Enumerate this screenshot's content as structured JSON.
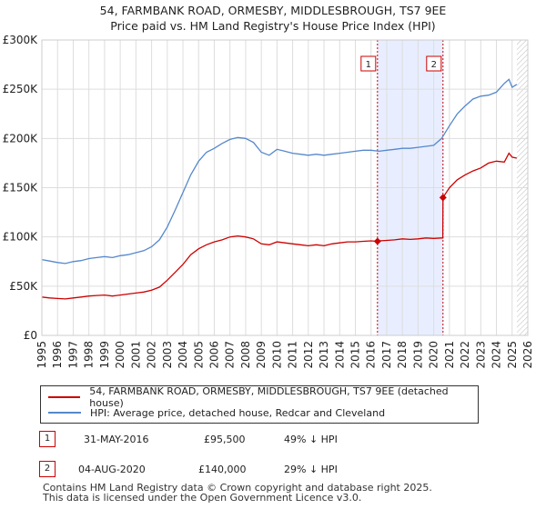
{
  "header": {
    "title": "54, FARMBANK ROAD, ORMESBY, MIDDLESBROUGH, TS7 9EE",
    "subtitle": "Price paid vs. HM Land Registry's House Price Index (HPI)"
  },
  "legend": {
    "property_label": "54, FARMBANK ROAD, ORMESBY, MIDDLESBROUGH, TS7 9EE (detached house)",
    "hpi_label": "HPI: Average price, detached house, Redcar and Cleveland"
  },
  "sales": [
    {
      "num": "1",
      "date": "31-MAY-2016",
      "price": "£95,500",
      "hpi": "49% ↓ HPI"
    },
    {
      "num": "2",
      "date": "04-AUG-2020",
      "price": "£140,000",
      "hpi": "29% ↓ HPI"
    }
  ],
  "footer": {
    "line1": "Contains HM Land Registry data © Crown copyright and database right 2025.",
    "line2": "This data is licensed under the Open Government Licence v3.0."
  },
  "colors": {
    "property": "#cc0000",
    "hpi": "#5588cc",
    "shade": "#e8eeff",
    "grid": "#dddddd"
  },
  "chart_data": {
    "type": "line",
    "xlim": [
      1995,
      2026
    ],
    "ylim": [
      0,
      300000
    ],
    "x_ticks": [
      1995,
      1996,
      1997,
      1998,
      1999,
      2000,
      2001,
      2002,
      2003,
      2004,
      2005,
      2006,
      2007,
      2008,
      2009,
      2010,
      2011,
      2012,
      2013,
      2014,
      2015,
      2016,
      2017,
      2018,
      2019,
      2020,
      2021,
      2022,
      2023,
      2024,
      2025,
      2026
    ],
    "y_ticks": [
      0,
      50000,
      100000,
      150000,
      200000,
      250000,
      300000
    ],
    "y_tick_labels": [
      "£0",
      "£50K",
      "£100K",
      "£150K",
      "£200K",
      "£250K",
      "£300K"
    ],
    "shaded_range": [
      2016.41,
      2020.59
    ],
    "hatched_from": 2025.3,
    "markers": [
      {
        "label": "1",
        "x": 2016.41,
        "y": 95500
      },
      {
        "label": "2",
        "x": 2020.59,
        "y": 140000
      }
    ],
    "series": [
      {
        "name": "54, FARMBANK ROAD, ORMESBY, MIDDLESBROUGH, TS7 9EE (detached house)",
        "x": [
          1995,
          1995.5,
          1996,
          1996.5,
          1997,
          1997.5,
          1998,
          1998.5,
          1999,
          1999.5,
          2000,
          2000.5,
          2001,
          2001.5,
          2002,
          2002.5,
          2003,
          2003.5,
          2004,
          2004.5,
          2005,
          2005.5,
          2006,
          2006.5,
          2007,
          2007.5,
          2008,
          2008.5,
          2009,
          2009.5,
          2010,
          2010.5,
          2011,
          2011.5,
          2012,
          2012.5,
          2013,
          2013.5,
          2014,
          2014.5,
          2015,
          2015.5,
          2016,
          2016.41,
          2016.5,
          2017,
          2017.5,
          2018,
          2018.5,
          2019,
          2019.5,
          2020,
          2020.5,
          2020.58,
          2020.59,
          2021,
          2021.5,
          2022,
          2022.5,
          2023,
          2023.5,
          2024,
          2024.5,
          2024.8,
          2025,
          2025.3
        ],
        "values": [
          39000,
          38000,
          37500,
          37000,
          38000,
          39000,
          40000,
          40500,
          41000,
          40000,
          41000,
          42000,
          43000,
          44000,
          46000,
          49000,
          56000,
          64000,
          72000,
          82000,
          88000,
          92000,
          95000,
          97000,
          100000,
          101000,
          100000,
          98000,
          93000,
          92000,
          95000,
          94000,
          93000,
          92000,
          91000,
          92000,
          91000,
          93000,
          94000,
          95000,
          95000,
          95500,
          96000,
          95500,
          96000,
          96500,
          97000,
          98000,
          97500,
          98000,
          99000,
          98500,
          99000,
          99000,
          140000,
          150000,
          158000,
          163000,
          167000,
          170000,
          175000,
          177000,
          176000,
          185000,
          181000,
          180000
        ]
      },
      {
        "name": "HPI: Average price, detached house, Redcar and Cleveland",
        "x": [
          1995,
          1995.5,
          1996,
          1996.5,
          1997,
          1997.5,
          1998,
          1998.5,
          1999,
          1999.5,
          2000,
          2000.5,
          2001,
          2001.5,
          2002,
          2002.5,
          2003,
          2003.5,
          2004,
          2004.5,
          2005,
          2005.5,
          2006,
          2006.5,
          2007,
          2007.5,
          2008,
          2008.5,
          2009,
          2009.5,
          2010,
          2010.5,
          2011,
          2011.5,
          2012,
          2012.5,
          2013,
          2013.5,
          2014,
          2014.5,
          2015,
          2015.5,
          2016,
          2016.5,
          2017,
          2017.5,
          2018,
          2018.5,
          2019,
          2019.5,
          2020,
          2020.5,
          2021,
          2021.5,
          2022,
          2022.5,
          2023,
          2023.5,
          2024,
          2024.5,
          2024.8,
          2025,
          2025.3
        ],
        "values": [
          77000,
          75500,
          74000,
          73000,
          75000,
          76000,
          78000,
          79000,
          80000,
          79000,
          81000,
          82000,
          84000,
          86000,
          90000,
          97000,
          110000,
          127000,
          145000,
          163000,
          177000,
          186000,
          190000,
          195000,
          199000,
          201000,
          200000,
          196000,
          186000,
          183000,
          189000,
          187000,
          185000,
          184000,
          183000,
          184000,
          183000,
          184000,
          185000,
          186000,
          187000,
          188000,
          188000,
          187000,
          188000,
          189000,
          190000,
          190000,
          191000,
          192000,
          193000,
          200000,
          213000,
          225000,
          233000,
          240000,
          243000,
          244000,
          247000,
          256000,
          260000,
          252000,
          255000
        ]
      }
    ]
  }
}
